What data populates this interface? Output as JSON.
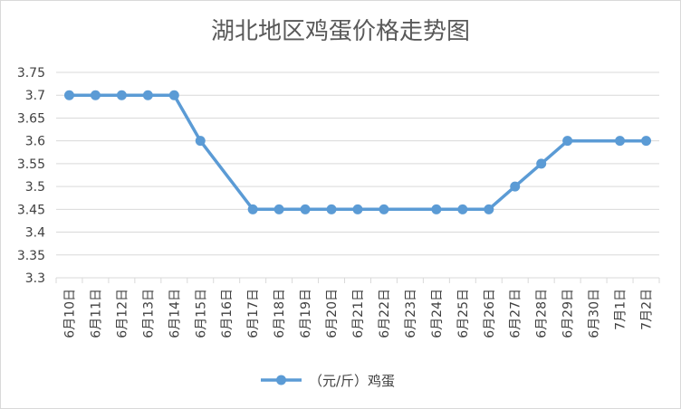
{
  "chart_data": {
    "type": "line",
    "title": "湖北地区鸡蛋价格走势图",
    "x": [
      "6月10日",
      "6月11日",
      "6月12日",
      "6月13日",
      "6月14日",
      "6月15日",
      "6月16日",
      "6月17日",
      "6月18日",
      "6月19日",
      "6月20日",
      "6月21日",
      "6月22日",
      "6月23日",
      "6月24日",
      "6月25日",
      "6月26日",
      "6月27日",
      "6月28日",
      "6月29日",
      "6月30日",
      "7月1日",
      "7月2日"
    ],
    "series": [
      {
        "name": "（元/斤）鸡蛋",
        "values": [
          3.7,
          3.7,
          3.7,
          3.7,
          3.7,
          3.6,
          null,
          3.45,
          3.45,
          3.45,
          3.45,
          3.45,
          3.45,
          null,
          3.45,
          3.45,
          3.45,
          3.5,
          3.55,
          3.6,
          null,
          3.6,
          3.6
        ]
      }
    ],
    "ylim": [
      3.3,
      3.75
    ],
    "yticks": [
      "3.75",
      "3.7",
      "3.65",
      "3.6",
      "3.55",
      "3.5",
      "3.45",
      "3.4",
      "3.35",
      "3.3"
    ],
    "grid": true,
    "legend": "bottom",
    "line_color": "#5b9bd5"
  }
}
